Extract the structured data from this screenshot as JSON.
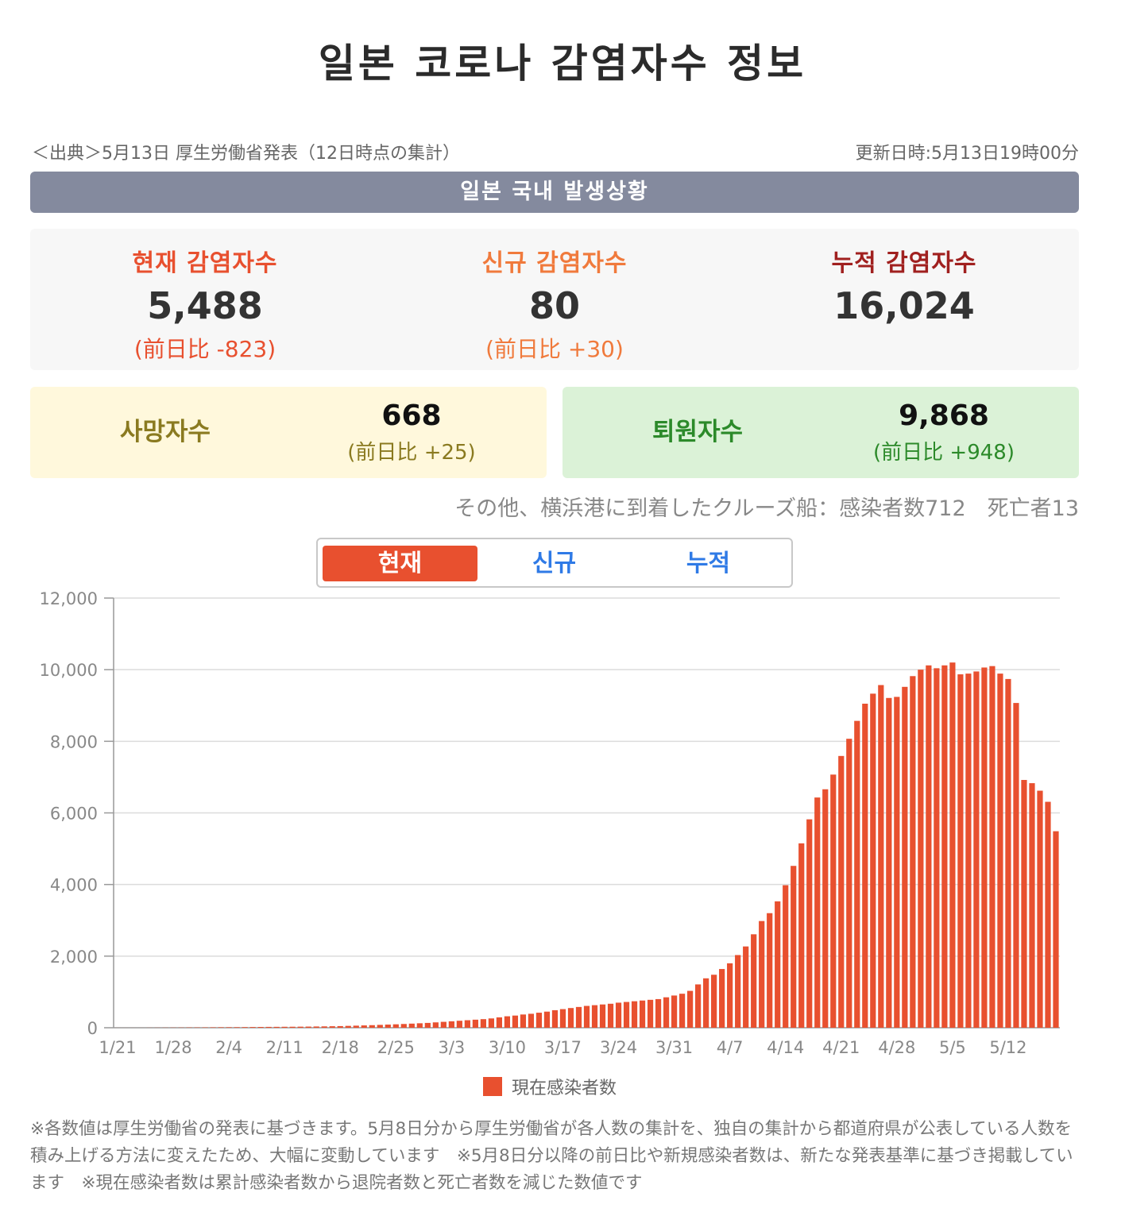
{
  "page_title": "일본 코로나 감염자수 정보",
  "source": "＜出典＞5月13日 厚生労働省発表（12日時点の集計）",
  "updated": "更新日時:5月13日19時00分",
  "section_title": "일본 국내 발생상황",
  "stats": {
    "current": {
      "label": "현재 감염자수",
      "value": "5,488",
      "diff": "(前日比 -823)"
    },
    "new": {
      "label": "신규 감염자수",
      "value": "80",
      "diff": "(前日比 +30)"
    },
    "cumulative": {
      "label": "누적 감염자수",
      "value": "16,024"
    }
  },
  "deaths": {
    "label": "사망자수",
    "value": "668",
    "diff": "(前日比 +25)"
  },
  "recovered": {
    "label": "퇴원자수",
    "value": "9,868",
    "diff": "(前日比 +948)"
  },
  "cruise_note": "その他、横浜港に到着したクルーズ船：感染者数712　死亡者13",
  "tabs": [
    "현재",
    "신규",
    "누적"
  ],
  "colors": {
    "accent": "#e8502f",
    "tab_text": "#2f7ae6",
    "section_bar": "#848a9e"
  },
  "chart_data": {
    "type": "bar",
    "title": "",
    "xlabel": "",
    "ylabel": "",
    "ylim": [
      0,
      12000
    ],
    "yticks": [
      0,
      2000,
      4000,
      6000,
      8000,
      10000,
      12000
    ],
    "ytick_labels": [
      "0",
      "2,000",
      "4,000",
      "6,000",
      "8,000",
      "10,000",
      "12,000"
    ],
    "xtick_labels": [
      "1/21",
      "1/28",
      "2/4",
      "2/11",
      "2/18",
      "2/25",
      "3/3",
      "3/10",
      "3/17",
      "3/24",
      "3/31",
      "4/7",
      "4/14",
      "4/21",
      "4/28",
      "5/5",
      "5/12"
    ],
    "start_date": "1/21",
    "end_date": "5/12",
    "series": [
      {
        "name": "現在感染者数",
        "color": "#e8502f",
        "values": [
          1,
          1,
          1,
          1,
          2,
          3,
          4,
          5,
          6,
          8,
          9,
          10,
          12,
          14,
          15,
          16,
          18,
          20,
          22,
          24,
          25,
          27,
          28,
          30,
          32,
          35,
          38,
          42,
          46,
          52,
          58,
          65,
          72,
          80,
          88,
          96,
          105,
          115,
          125,
          135,
          150,
          165,
          180,
          195,
          210,
          225,
          240,
          260,
          290,
          320,
          340,
          370,
          390,
          420,
          450,
          490,
          520,
          550,
          580,
          610,
          630,
          650,
          670,
          700,
          720,
          740,
          760,
          780,
          800,
          850,
          900,
          950,
          1030,
          1210,
          1380,
          1480,
          1640,
          1800,
          2030,
          2270,
          2610,
          2980,
          3200,
          3530,
          3980,
          4520,
          5150,
          5820,
          6430,
          6660,
          7070,
          7590,
          8070,
          8570,
          9050,
          9330,
          9570,
          9210,
          9240,
          9520,
          9820,
          10000,
          10120,
          10040,
          10120,
          10200,
          9870,
          9890,
          9950,
          10060,
          10100,
          9890,
          9740,
          9070,
          6920,
          6830,
          6620,
          6310,
          5488
        ]
      }
    ],
    "legend": "bottom-center"
  },
  "notes": "※各数値は厚生労働省の発表に基づきます。5月8日分から厚生労働省が各人数の集計を、独自の集計から都道府県が公表している人数を積み上げる方法に変えたため、大幅に変動しています　※5月8日分以降の前日比や新規感染者数は、新たな発表基準に基づき掲載しています　※現在感染者数は累計感染者数から退院者数と死亡者数を減じた数値です"
}
